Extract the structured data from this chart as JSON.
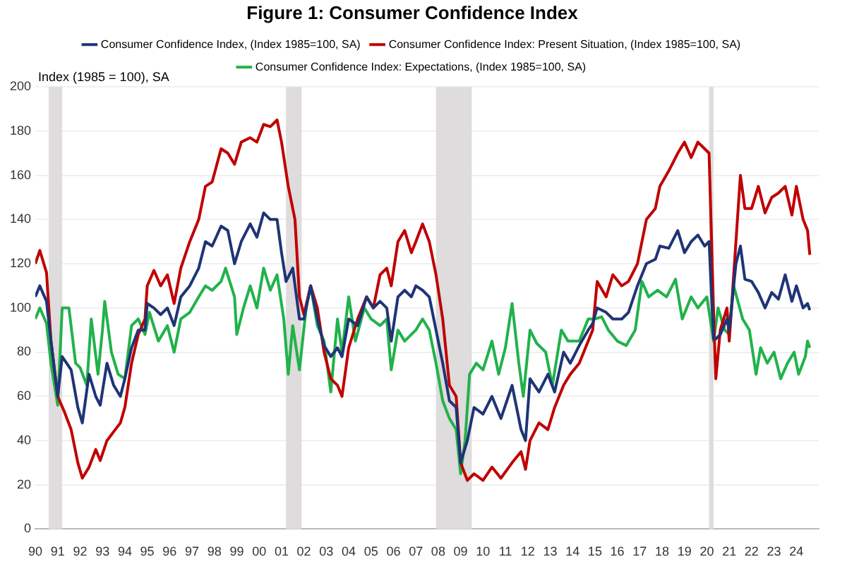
{
  "chart_data": {
    "type": "line",
    "title": "Figure 1: Consumer Confidence Index",
    "ylabel": "Index (1985 = 100), SA",
    "xlim": [
      1990,
      2025
    ],
    "ylim": [
      0,
      200
    ],
    "yticks": [
      0,
      20,
      40,
      60,
      80,
      100,
      120,
      140,
      160,
      180,
      200
    ],
    "xticks": [
      {
        "value": 1990,
        "label": "90"
      },
      {
        "value": 1991,
        "label": "91"
      },
      {
        "value": 1992,
        "label": "92"
      },
      {
        "value": 1993,
        "label": "93"
      },
      {
        "value": 1994,
        "label": "94"
      },
      {
        "value": 1995,
        "label": "95"
      },
      {
        "value": 1996,
        "label": "96"
      },
      {
        "value": 1997,
        "label": "97"
      },
      {
        "value": 1998,
        "label": "98"
      },
      {
        "value": 1999,
        "label": "99"
      },
      {
        "value": 2000,
        "label": "00"
      },
      {
        "value": 2001,
        "label": "01"
      },
      {
        "value": 2002,
        "label": "02"
      },
      {
        "value": 2003,
        "label": "03"
      },
      {
        "value": 2004,
        "label": "04"
      },
      {
        "value": 2005,
        "label": "05"
      },
      {
        "value": 2006,
        "label": "06"
      },
      {
        "value": 2007,
        "label": "07"
      },
      {
        "value": 2008,
        "label": "08"
      },
      {
        "value": 2009,
        "label": "09"
      },
      {
        "value": 2010,
        "label": "10"
      },
      {
        "value": 2011,
        "label": "11"
      },
      {
        "value": 2012,
        "label": "12"
      },
      {
        "value": 2013,
        "label": "13"
      },
      {
        "value": 2014,
        "label": "14"
      },
      {
        "value": 2015,
        "label": "15"
      },
      {
        "value": 2016,
        "label": "16"
      },
      {
        "value": 2017,
        "label": "17"
      },
      {
        "value": 2018,
        "label": "18"
      },
      {
        "value": 2019,
        "label": "19"
      },
      {
        "value": 2020,
        "label": "20"
      },
      {
        "value": 2021,
        "label": "21"
      },
      {
        "value": 2022,
        "label": "22"
      },
      {
        "value": 2023,
        "label": "23"
      },
      {
        "value": 2024,
        "label": "24"
      }
    ],
    "grid": "y",
    "legend": "top",
    "marker": "none",
    "line_style": "solid",
    "bands": [
      {
        "axis": "x",
        "from": 1990.6,
        "to": 1991.2,
        "color": "#dedcdc"
      },
      {
        "axis": "x",
        "from": 2001.2,
        "to": 2001.9,
        "color": "#dedcdc"
      },
      {
        "axis": "x",
        "from": 2007.9,
        "to": 2009.5,
        "color": "#dedcdc"
      },
      {
        "axis": "x",
        "from": 2020.1,
        "to": 2020.3,
        "color": "#dedcdc"
      }
    ],
    "series": [
      {
        "name": "Consumer Confidence Index, (Index 1985=100, SA)",
        "color": "#1f3476",
        "x": [
          1990.0,
          1990.2,
          1990.5,
          1990.7,
          1991.0,
          1991.2,
          1991.6,
          1991.9,
          1992.1,
          1992.4,
          1992.7,
          1992.9,
          1993.2,
          1993.5,
          1993.8,
          1994.0,
          1994.3,
          1994.6,
          1994.9,
          1995.0,
          1995.3,
          1995.6,
          1995.9,
          1996.2,
          1996.5,
          1996.9,
          1997.3,
          1997.6,
          1997.9,
          1998.3,
          1998.6,
          1998.9,
          1999.2,
          1999.6,
          1999.9,
          2000.2,
          2000.5,
          2000.8,
          2001.0,
          2001.2,
          2001.5,
          2001.8,
          2002.0,
          2002.3,
          2002.6,
          2002.9,
          2003.2,
          2003.5,
          2003.7,
          2004.0,
          2004.4,
          2004.8,
          2005.1,
          2005.4,
          2005.7,
          2005.9,
          2006.2,
          2006.5,
          2006.8,
          2007.0,
          2007.3,
          2007.6,
          2007.9,
          2008.2,
          2008.5,
          2008.8,
          2009.0,
          2009.3,
          2009.6,
          2010.0,
          2010.4,
          2010.8,
          2011.3,
          2011.7,
          2011.9,
          2012.1,
          2012.5,
          2012.9,
          2013.2,
          2013.6,
          2013.9,
          2014.3,
          2014.7,
          2014.9,
          2015.1,
          2015.5,
          2015.8,
          2016.2,
          2016.5,
          2016.9,
          2017.3,
          2017.7,
          2017.9,
          2018.3,
          2018.7,
          2019.0,
          2019.3,
          2019.6,
          2019.9,
          2020.1,
          2020.3,
          2020.4,
          2020.6,
          2020.9,
          2021.0,
          2021.3,
          2021.5,
          2021.7,
          2022.0,
          2022.3,
          2022.6,
          2022.9,
          2023.2,
          2023.5,
          2023.8,
          2024.0,
          2024.3,
          2024.5,
          2024.6
        ],
        "values": [
          105,
          110,
          103,
          85,
          60,
          78,
          72,
          55,
          48,
          70,
          60,
          56,
          75,
          65,
          60,
          68,
          82,
          90,
          90,
          102,
          100,
          97,
          100,
          92,
          105,
          110,
          118,
          130,
          128,
          137,
          135,
          120,
          130,
          138,
          132,
          143,
          140,
          140,
          125,
          112,
          118,
          95,
          95,
          110,
          95,
          83,
          78,
          82,
          78,
          95,
          92,
          105,
          100,
          103,
          100,
          85,
          105,
          108,
          105,
          110,
          108,
          105,
          90,
          75,
          58,
          55,
          30,
          40,
          55,
          52,
          60,
          50,
          65,
          45,
          40,
          68,
          62,
          70,
          62,
          80,
          75,
          83,
          90,
          93,
          100,
          98,
          95,
          95,
          98,
          110,
          120,
          122,
          128,
          127,
          135,
          125,
          130,
          133,
          128,
          130,
          86,
          86,
          88,
          95,
          90,
          120,
          128,
          113,
          112,
          107,
          100,
          107,
          104,
          115,
          103,
          110,
          100,
          102,
          99
        ]
      },
      {
        "name": "Consumer Confidence Index: Present Situation, (Index 1985=100, SA)",
        "color": "#c00000",
        "x": [
          1990.0,
          1990.2,
          1990.5,
          1990.7,
          1991.0,
          1991.3,
          1991.6,
          1991.9,
          1992.1,
          1992.4,
          1992.7,
          1992.9,
          1993.2,
          1993.5,
          1993.8,
          1994.0,
          1994.3,
          1994.6,
          1994.9,
          1995.0,
          1995.3,
          1995.6,
          1995.9,
          1996.2,
          1996.5,
          1996.9,
          1997.3,
          1997.6,
          1997.9,
          1998.3,
          1998.6,
          1998.9,
          1999.2,
          1999.6,
          1999.9,
          2000.2,
          2000.5,
          2000.8,
          2001.0,
          2001.3,
          2001.6,
          2001.8,
          2002.0,
          2002.3,
          2002.6,
          2002.9,
          2003.2,
          2003.5,
          2003.7,
          2004.0,
          2004.4,
          2004.8,
          2005.1,
          2005.4,
          2005.7,
          2005.9,
          2006.2,
          2006.5,
          2006.8,
          2007.0,
          2007.3,
          2007.6,
          2007.9,
          2008.2,
          2008.5,
          2008.8,
          2009.0,
          2009.3,
          2009.6,
          2010.0,
          2010.4,
          2010.8,
          2011.3,
          2011.7,
          2011.9,
          2012.1,
          2012.5,
          2012.9,
          2013.2,
          2013.6,
          2013.9,
          2014.3,
          2014.7,
          2014.9,
          2015.1,
          2015.5,
          2015.8,
          2016.2,
          2016.5,
          2016.9,
          2017.3,
          2017.7,
          2017.9,
          2018.3,
          2018.7,
          2019.0,
          2019.3,
          2019.6,
          2019.9,
          2020.1,
          2020.3,
          2020.4,
          2020.6,
          2020.9,
          2021.0,
          2021.3,
          2021.5,
          2021.7,
          2022.0,
          2022.3,
          2022.6,
          2022.9,
          2023.2,
          2023.5,
          2023.8,
          2024.0,
          2024.3,
          2024.5,
          2024.6
        ],
        "values": [
          120,
          126,
          116,
          85,
          60,
          53,
          45,
          30,
          23,
          28,
          36,
          31,
          40,
          44,
          48,
          55,
          75,
          88,
          95,
          110,
          117,
          110,
          115,
          102,
          118,
          130,
          140,
          155,
          157,
          172,
          170,
          165,
          175,
          177,
          175,
          183,
          182,
          185,
          175,
          155,
          140,
          105,
          97,
          110,
          100,
          80,
          68,
          65,
          60,
          82,
          95,
          105,
          100,
          115,
          118,
          110,
          130,
          135,
          125,
          130,
          138,
          130,
          115,
          95,
          65,
          60,
          30,
          22,
          25,
          22,
          28,
          23,
          30,
          35,
          27,
          40,
          48,
          45,
          55,
          65,
          70,
          75,
          85,
          90,
          112,
          105,
          115,
          110,
          112,
          120,
          140,
          145,
          155,
          162,
          170,
          175,
          168,
          175,
          172,
          170,
          98,
          68,
          90,
          100,
          85,
          130,
          160,
          145,
          145,
          155,
          143,
          150,
          152,
          155,
          142,
          155,
          140,
          135,
          124
        ]
      },
      {
        "name": "Consumer Confidence Index: Expectations, (Index 1985=100, SA)",
        "color": "#21b24b",
        "x": [
          1990.0,
          1990.2,
          1990.5,
          1990.7,
          1991.0,
          1991.2,
          1991.5,
          1991.8,
          1992.0,
          1992.3,
          1992.5,
          1992.8,
          1993.0,
          1993.1,
          1993.4,
          1993.7,
          1994.0,
          1994.3,
          1994.6,
          1994.9,
          1995.1,
          1995.5,
          1995.9,
          1996.2,
          1996.5,
          1996.9,
          1997.3,
          1997.6,
          1997.9,
          1998.3,
          1998.5,
          1998.9,
          1999.0,
          1999.3,
          1999.6,
          1999.9,
          2000.2,
          2000.5,
          2000.8,
          2001.1,
          2001.3,
          2001.5,
          2001.8,
          2002.1,
          2002.3,
          2002.6,
          2002.9,
          2003.2,
          2003.5,
          2003.7,
          2004.0,
          2004.3,
          2004.7,
          2005.0,
          2005.4,
          2005.7,
          2005.9,
          2006.2,
          2006.5,
          2006.8,
          2007.0,
          2007.3,
          2007.6,
          2007.9,
          2008.2,
          2008.5,
          2008.8,
          2009.0,
          2009.2,
          2009.4,
          2009.7,
          2010.0,
          2010.4,
          2010.7,
          2011.0,
          2011.3,
          2011.6,
          2011.8,
          2012.1,
          2012.4,
          2012.8,
          2013.1,
          2013.5,
          2013.8,
          2014.3,
          2014.7,
          2015.0,
          2015.3,
          2015.6,
          2016.0,
          2016.4,
          2016.8,
          2017.1,
          2017.4,
          2017.8,
          2018.2,
          2018.6,
          2018.9,
          2019.3,
          2019.6,
          2020.0,
          2020.3,
          2020.5,
          2020.8,
          2021.0,
          2021.2,
          2021.6,
          2021.9,
          2022.2,
          2022.4,
          2022.7,
          2023.0,
          2023.3,
          2023.6,
          2023.9,
          2024.1,
          2024.4,
          2024.5,
          2024.6
        ],
        "values": [
          95,
          100,
          93,
          75,
          56,
          100,
          100,
          75,
          73,
          65,
          95,
          70,
          90,
          103,
          80,
          70,
          68,
          92,
          95,
          88,
          98,
          85,
          92,
          80,
          95,
          98,
          105,
          110,
          108,
          112,
          118,
          105,
          88,
          100,
          110,
          100,
          118,
          108,
          115,
          95,
          70,
          92,
          72,
          100,
          110,
          92,
          85,
          62,
          95,
          80,
          105,
          85,
          100,
          95,
          92,
          95,
          72,
          90,
          85,
          88,
          90,
          95,
          90,
          75,
          58,
          50,
          45,
          25,
          40,
          70,
          75,
          72,
          85,
          70,
          82,
          102,
          75,
          60,
          90,
          84,
          80,
          65,
          90,
          85,
          85,
          95,
          95,
          96,
          90,
          85,
          83,
          90,
          112,
          105,
          108,
          105,
          113,
          95,
          105,
          100,
          105,
          85,
          100,
          90,
          88,
          110,
          95,
          90,
          70,
          82,
          75,
          80,
          68,
          75,
          80,
          70,
          78,
          85,
          82
        ]
      }
    ]
  }
}
